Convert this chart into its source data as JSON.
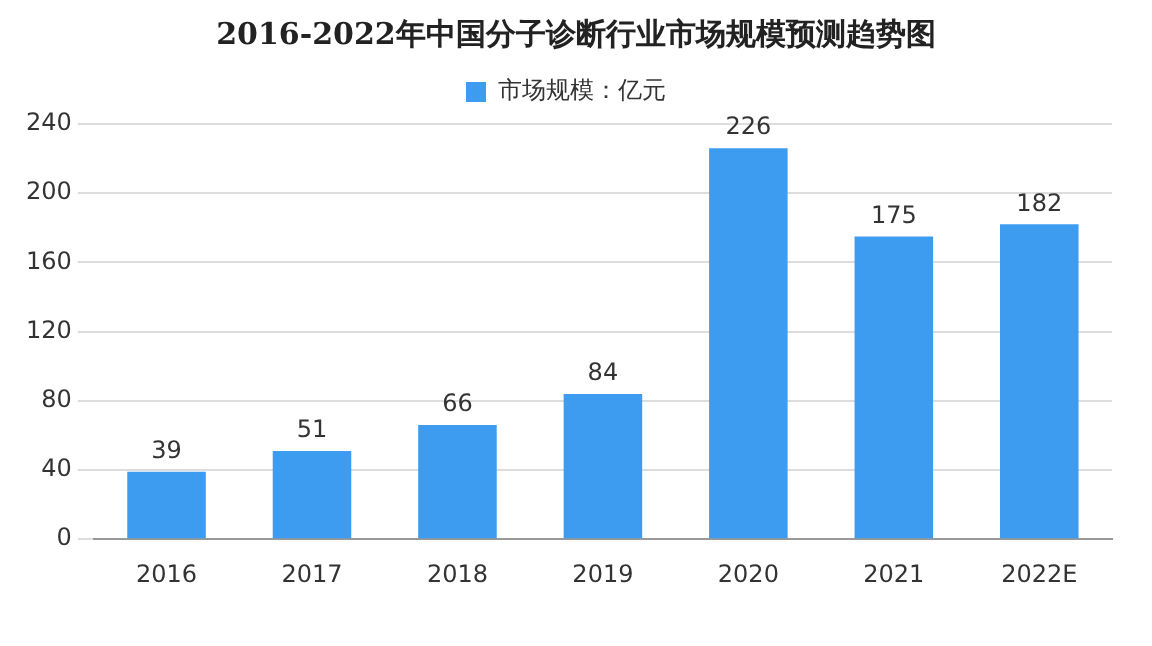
{
  "chart_data": {
    "type": "bar",
    "title": "2016-2022年中国分子诊断行业市场规模预测趋势图",
    "categories": [
      "2016",
      "2017",
      "2018",
      "2019",
      "2020",
      "2021",
      "2022E"
    ],
    "series": [
      {
        "name": "市场规模：亿元",
        "color": "#3d9cf0",
        "values": [
          39,
          51,
          66,
          84,
          226,
          175,
          182
        ]
      }
    ],
    "ylim": [
      0,
      240
    ],
    "yticks": [
      0,
      40,
      80,
      120,
      160,
      200,
      240
    ],
    "grid": "y",
    "legend": "top",
    "data_labels": true
  }
}
